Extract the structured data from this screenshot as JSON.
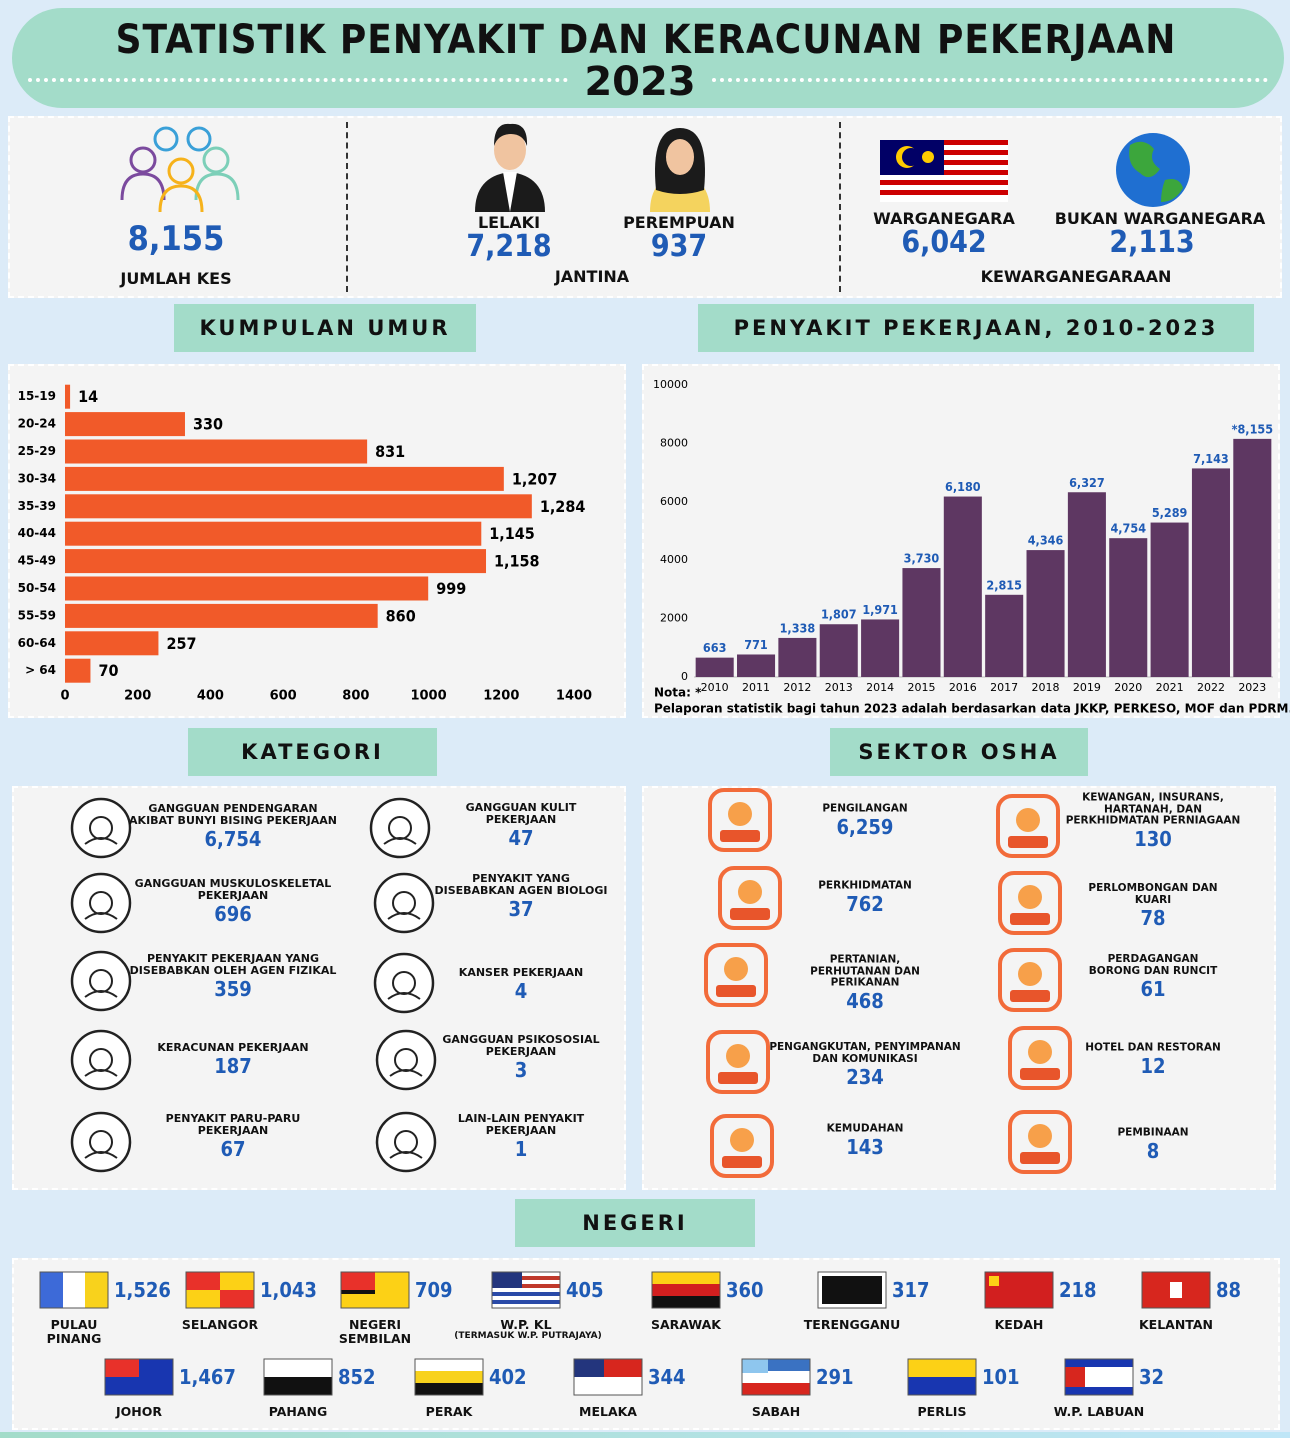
{
  "header": {
    "title": "STATISTIK PENYAKIT DAN KERACUNAN PEKERJAAN",
    "year": "2023"
  },
  "summary": {
    "total": {
      "value": "8,155",
      "label": "JUMLAH KES"
    },
    "gender": {
      "label": "JANTINA",
      "male": {
        "label": "LELAKI",
        "value": "7,218"
      },
      "female": {
        "label": "PEREMPUAN",
        "value": "937"
      }
    },
    "citizenship": {
      "label": "KEWARGANEGARAAN",
      "citizen": {
        "label": "WARGANEGARA",
        "value": "6,042"
      },
      "non_citizen": {
        "label": "BUKAN WARGANEGARA",
        "value": "2,113"
      }
    }
  },
  "chart_data": [
    {
      "type": "bar",
      "orientation": "horizontal",
      "title": "KUMPULAN UMUR",
      "categories": [
        "15-19",
        "20-24",
        "25-29",
        "30-34",
        "35-39",
        "40-44",
        "45-49",
        "50-54",
        "55-59",
        "60-64",
        "> 64"
      ],
      "values": [
        14,
        330,
        831,
        1207,
        1284,
        1145,
        1158,
        999,
        860,
        257,
        70
      ],
      "value_labels": [
        "14",
        "330",
        "831",
        "1,207",
        "1,284",
        "1,145",
        "1,158",
        "999",
        "860",
        "257",
        "70"
      ],
      "color": "#f15a29",
      "xlim": [
        0,
        1400
      ],
      "xticks": [
        0,
        200,
        400,
        600,
        800,
        1000,
        1200,
        1400
      ],
      "grid": false
    },
    {
      "type": "bar",
      "orientation": "vertical",
      "title": "PENYAKIT PEKERJAAN, 2010-2023",
      "categories": [
        "2010",
        "2011",
        "2012",
        "2013",
        "2014",
        "2015",
        "2016",
        "2017",
        "2018",
        "2019",
        "2020",
        "2021",
        "2022",
        "2023"
      ],
      "values": [
        663,
        771,
        1338,
        1807,
        1971,
        3730,
        6180,
        2815,
        4346,
        6327,
        4754,
        5289,
        7143,
        8155
      ],
      "value_labels": [
        "663",
        "771",
        "1,338",
        "1,807",
        "1,971",
        "3,730",
        "6,180",
        "2,815",
        "4,346",
        "6,327",
        "4,754",
        "5,289",
        "7,143",
        "*8,155"
      ],
      "color": "#5e3762",
      "ylim": [
        0,
        10000
      ],
      "yticks": [
        0,
        2000,
        4000,
        6000,
        8000,
        10000
      ],
      "grid": false,
      "note_label": "Nota: *",
      "note": "Pelaporan statistik bagi tahun 2023 adalah berdasarkan data JKKP, PERKESO, MOF dan PDRM."
    }
  ],
  "kategori": {
    "title": "KATEGORI",
    "items": [
      {
        "label": "GANGGUAN PENDENGARAN\nAKIBAT BUNYI BISING PEKERJAAN",
        "value": "6,754"
      },
      {
        "label": "GANGGUAN MUSKULOSKELETAL\nPEKERJAAN",
        "value": "696"
      },
      {
        "label": "PENYAKIT PEKERJAAN YANG\nDISEBABKAN OLEH AGEN FIZIKAL",
        "value": "359"
      },
      {
        "label": "KERACUNAN PEKERJAAN",
        "value": "187"
      },
      {
        "label": "PENYAKIT PARU-PARU\nPEKERJAAN",
        "value": "67"
      },
      {
        "label": "GANGGUAN KULIT\nPEKERJAAN",
        "value": "47"
      },
      {
        "label": "PENYAKIT YANG\nDISEBABKAN AGEN BIOLOGI",
        "value": "37"
      },
      {
        "label": "KANSER PEKERJAAN",
        "value": "4"
      },
      {
        "label": "GANGGUAN PSIKOSOSIAL\nPEKERJAAN",
        "value": "3"
      },
      {
        "label": "LAIN-LAIN PENYAKIT\nPEKERJAAN",
        "value": "1"
      }
    ]
  },
  "sektor": {
    "title": "SEKTOR OSHA",
    "items": [
      {
        "label": "PENGILANGAN",
        "value": "6,259"
      },
      {
        "label": "PERKHIDMATAN",
        "value": "762"
      },
      {
        "label": "PERTANIAN,\nPERHUTANAN DAN\nPERIKANAN",
        "value": "468"
      },
      {
        "label": "PENGANGKUTAN, PENYIMPANAN\nDAN KOMUNIKASI",
        "value": "234"
      },
      {
        "label": "KEMUDAHAN",
        "value": "143"
      },
      {
        "label": "KEWANGAN, INSURANS,\nHARTANAH, DAN\nPERKHIDMATAN PERNIAGAAN",
        "value": "130"
      },
      {
        "label": "PERLOMBONGAN DAN\nKUARI",
        "value": "78"
      },
      {
        "label": "PERDAGANGAN\nBORONG DAN RUNCIT",
        "value": "61"
      },
      {
        "label": "HOTEL DAN RESTORAN",
        "value": "12"
      },
      {
        "label": "PEMBINAAN",
        "value": "8"
      }
    ]
  },
  "negeri": {
    "title": "NEGERI",
    "items": [
      {
        "name": "PULAU\nPINANG",
        "value": "1,526"
      },
      {
        "name": "SELANGOR",
        "value": "1,043"
      },
      {
        "name": "NEGERI\nSEMBILAN",
        "value": "709"
      },
      {
        "name": "W.P. KL",
        "value": "405",
        "note": "(TERMASUK W.P. PUTRAJAYA)"
      },
      {
        "name": "SARAWAK",
        "value": "360"
      },
      {
        "name": "TERENGGANU",
        "value": "317"
      },
      {
        "name": "KEDAH",
        "value": "218"
      },
      {
        "name": "KELANTAN",
        "value": "88"
      },
      {
        "name": "JOHOR",
        "value": "1,467"
      },
      {
        "name": "PAHANG",
        "value": "852"
      },
      {
        "name": "PERAK",
        "value": "402"
      },
      {
        "name": "MELAKA",
        "value": "344"
      },
      {
        "name": "SABAH",
        "value": "291"
      },
      {
        "name": "PERLIS",
        "value": "101"
      },
      {
        "name": "W.P. LABUAN",
        "value": "32"
      }
    ]
  }
}
